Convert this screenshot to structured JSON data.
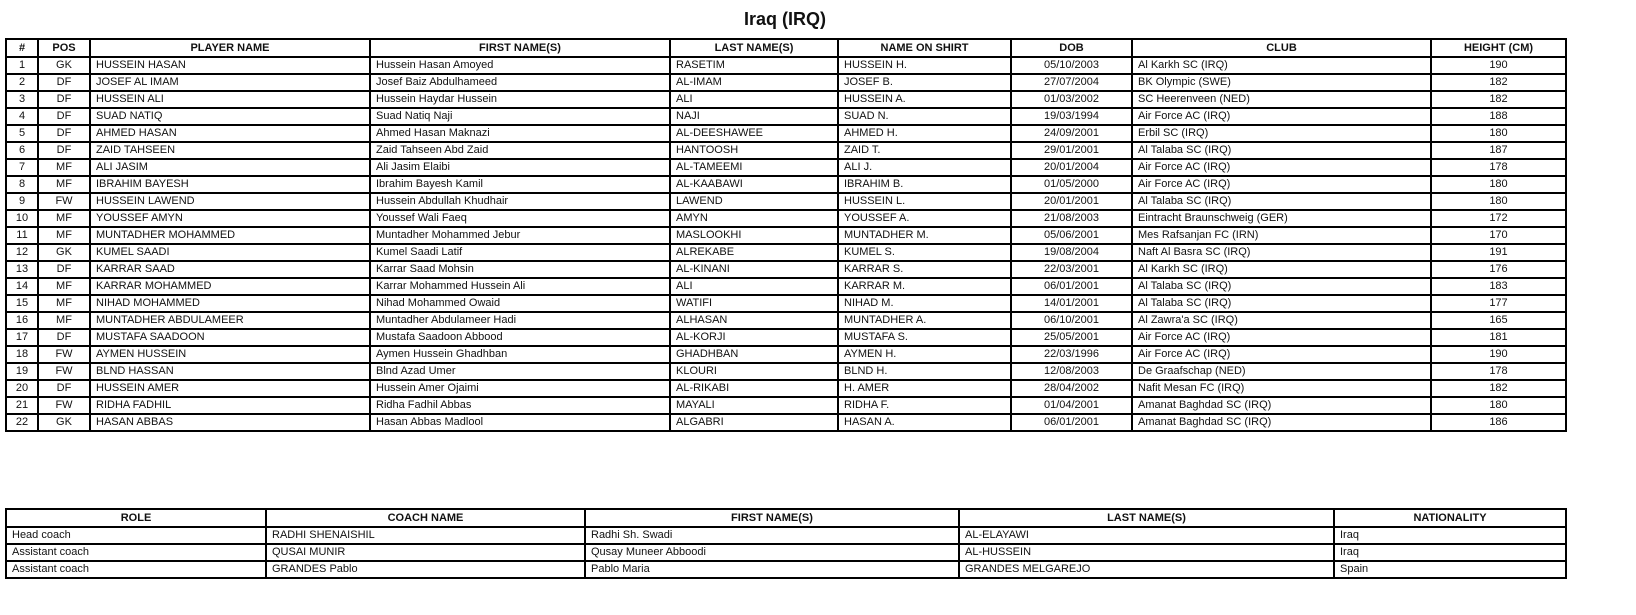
{
  "title": "Iraq (IRQ)",
  "players": {
    "headers": [
      "#",
      "POS",
      "PLAYER NAME",
      "FIRST NAME(S)",
      "LAST NAME(S)",
      "NAME ON SHIRT",
      "DOB",
      "CLUB",
      "HEIGHT (CM)"
    ],
    "rows": [
      [
        "1",
        "GK",
        "HUSSEIN HASAN",
        "Hussein Hasan Amoyed",
        "RASETIM",
        "HUSSEIN H.",
        "05/10/2003",
        "Al Karkh SC (IRQ)",
        "190"
      ],
      [
        "2",
        "DF",
        "JOSEF AL IMAM",
        "Josef Baiz Abdulhameed",
        "AL-IMAM",
        "JOSEF B.",
        "27/07/2004",
        "BK Olympic (SWE)",
        "182"
      ],
      [
        "3",
        "DF",
        "HUSSEIN ALI",
        "Hussein Haydar Hussein",
        "ALI",
        "HUSSEIN A.",
        "01/03/2002",
        "SC Heerenveen (NED)",
        "182"
      ],
      [
        "4",
        "DF",
        "SUAD NATIQ",
        "Suad Natiq Naji",
        "NAJI",
        "SUAD N.",
        "19/03/1994",
        "Air Force AC (IRQ)",
        "188"
      ],
      [
        "5",
        "DF",
        "AHMED HASAN",
        "Ahmed Hasan Maknazi",
        "AL-DEESHAWEE",
        "AHMED H.",
        "24/09/2001",
        "Erbil SC (IRQ)",
        "180"
      ],
      [
        "6",
        "DF",
        "ZAID TAHSEEN",
        "Zaid Tahseen Abd Zaid",
        "HANTOOSH",
        "ZAID T.",
        "29/01/2001",
        "Al Talaba SC (IRQ)",
        "187"
      ],
      [
        "7",
        "MF",
        "ALI JASIM",
        "Ali Jasim Elaibi",
        "AL-TAMEEMI",
        "ALI J.",
        "20/01/2004",
        "Air Force AC (IRQ)",
        "178"
      ],
      [
        "8",
        "MF",
        "IBRAHIM BAYESH",
        "Ibrahim Bayesh Kamil",
        "AL-KAABAWI",
        "IBRAHIM B.",
        "01/05/2000",
        "Air Force AC (IRQ)",
        "180"
      ],
      [
        "9",
        "FW",
        "HUSSEIN LAWEND",
        "Hussein Abdullah Khudhair",
        "LAWEND",
        "HUSSEIN L.",
        "20/01/2001",
        "Al Talaba SC (IRQ)",
        "180"
      ],
      [
        "10",
        "MF",
        "YOUSSEF AMYN",
        "Youssef Wali Faeq",
        "AMYN",
        "YOUSSEF A.",
        "21/08/2003",
        "Eintracht Braunschweig (GER)",
        "172"
      ],
      [
        "11",
        "MF",
        "MUNTADHER MOHAMMED",
        "Muntadher Mohammed Jebur",
        "MASLOOKHI",
        "MUNTADHER M.",
        "05/06/2001",
        "Mes Rafsanjan FC (IRN)",
        "170"
      ],
      [
        "12",
        "GK",
        "KUMEL SAADI",
        "Kumel Saadi Latif",
        "ALREKABE",
        "KUMEL S.",
        "19/08/2004",
        "Naft Al Basra SC (IRQ)",
        "191"
      ],
      [
        "13",
        "DF",
        "KARRAR SAAD",
        "Karrar Saad Mohsin",
        "AL-KINANI",
        "KARRAR S.",
        "22/03/2001",
        "Al Karkh SC (IRQ)",
        "176"
      ],
      [
        "14",
        "MF",
        "KARRAR MOHAMMED",
        "Karrar Mohammed Hussein Ali",
        "ALI",
        "KARRAR M.",
        "06/01/2001",
        "Al Talaba SC (IRQ)",
        "183"
      ],
      [
        "15",
        "MF",
        "NIHAD MOHAMMED",
        "Nihad Mohammed Owaid",
        "WATIFI",
        "NIHAD M.",
        "14/01/2001",
        "Al Talaba SC (IRQ)",
        "177"
      ],
      [
        "16",
        "MF",
        "MUNTADHER ABDULAMEER",
        "Muntadher Abdulameer Hadi",
        "ALHASAN",
        "MUNTADHER A.",
        "06/10/2001",
        "Al Zawra'a SC (IRQ)",
        "165"
      ],
      [
        "17",
        "DF",
        "MUSTAFA SAADOON",
        "Mustafa Saadoon Abbood",
        "AL-KORJI",
        "MUSTAFA S.",
        "25/05/2001",
        "Air Force AC (IRQ)",
        "181"
      ],
      [
        "18",
        "FW",
        "AYMEN HUSSEIN",
        "Aymen Hussein Ghadhban",
        "GHADHBAN",
        "AYMEN H.",
        "22/03/1996",
        "Air Force AC (IRQ)",
        "190"
      ],
      [
        "19",
        "FW",
        "BLND HASSAN",
        "Blnd Azad Umer",
        "KLOURI",
        "BLND H.",
        "12/08/2003",
        "De Graafschap (NED)",
        "178"
      ],
      [
        "20",
        "DF",
        "HUSSEIN AMER",
        "Hussein Amer Ojaimi",
        "AL-RIKABI",
        "H. AMER",
        "28/04/2002",
        "Nafit Mesan FC (IRQ)",
        "182"
      ],
      [
        "21",
        "FW",
        "RIDHA FADHIL",
        "Ridha Fadhil Abbas",
        "MAYALI",
        "RIDHA F.",
        "01/04/2001",
        "Amanat Baghdad SC (IRQ)",
        "180"
      ],
      [
        "22",
        "GK",
        "HASAN ABBAS",
        "Hasan Abbas Madlool",
        "ALGABRI",
        "HASAN A.",
        "06/01/2001",
        "Amanat Baghdad SC (IRQ)",
        "186"
      ]
    ]
  },
  "staff": {
    "headers": [
      "ROLE",
      "COACH NAME",
      "FIRST NAME(S)",
      "LAST NAME(S)",
      "NATIONALITY"
    ],
    "rows": [
      [
        "Head coach",
        "RADHI SHENAISHIL",
        "Radhi Sh. Swadi",
        "AL-ELAYAWI",
        "Iraq"
      ],
      [
        "Assistant coach",
        "QUSAI MUNIR",
        "Qusay Muneer Abboodi",
        "AL-HUSSEIN",
        "Iraq"
      ],
      [
        "Assistant coach",
        "GRANDES Pablo",
        "Pablo Maria",
        "GRANDES MELGAREJO",
        "Spain"
      ]
    ]
  }
}
